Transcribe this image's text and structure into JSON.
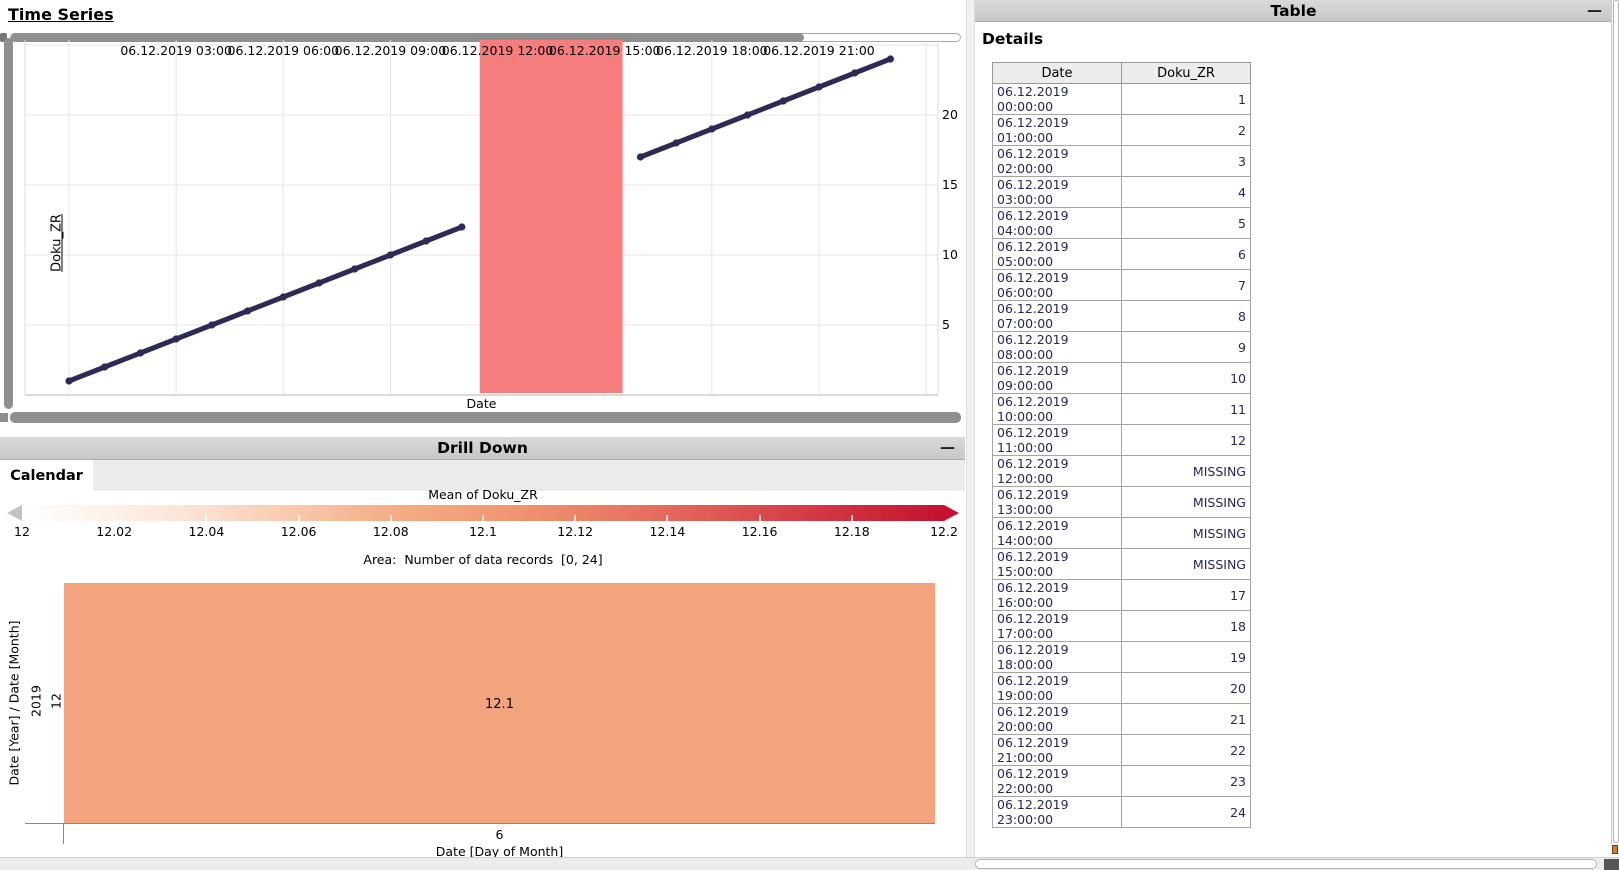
{
  "colors": {
    "navy_text": "#26265e",
    "line": "#2b2b57",
    "missing_band": "#f57d7d",
    "cell_salmon": "#f2a47e",
    "scale_max_red": "#c41230",
    "grid": "#e4e4e4"
  },
  "time_series_panel": {
    "title": "Time Series",
    "x_axis_label": "Date",
    "y_axis_label": "Doku_ZR"
  },
  "drill_down_panel": {
    "title": "Drill Down",
    "minimize_label": "—",
    "tabs": [
      {
        "label": "Calendar",
        "active": true
      }
    ],
    "legend": {
      "title": "Mean of Doku_ZR",
      "tick_labels": [
        "12",
        "12.02",
        "12.04",
        "12.06",
        "12.08",
        "12.1",
        "12.12",
        "12.14",
        "12.16",
        "12.18",
        "12.2"
      ]
    },
    "area_label": "Area:  Number of data records  [0, 24]",
    "heatmap": {
      "y_axis_group_label": "Date [Year] / Date [Month]",
      "year_label": "2019",
      "month_label": "12",
      "cell_value": "12.1",
      "x_tick_label": "6",
      "x_axis_label": "Date [Day of Month]"
    }
  },
  "table_panel": {
    "title": "Table",
    "minimize_label": "—",
    "subtitle": "Details",
    "columns": [
      "Date",
      "Doku_ZR"
    ],
    "rows": [
      [
        "06.12.2019 00:00:00",
        "1"
      ],
      [
        "06.12.2019 01:00:00",
        "2"
      ],
      [
        "06.12.2019 02:00:00",
        "3"
      ],
      [
        "06.12.2019 03:00:00",
        "4"
      ],
      [
        "06.12.2019 04:00:00",
        "5"
      ],
      [
        "06.12.2019 05:00:00",
        "6"
      ],
      [
        "06.12.2019 06:00:00",
        "7"
      ],
      [
        "06.12.2019 07:00:00",
        "8"
      ],
      [
        "06.12.2019 08:00:00",
        "9"
      ],
      [
        "06.12.2019 09:00:00",
        "10"
      ],
      [
        "06.12.2019 10:00:00",
        "11"
      ],
      [
        "06.12.2019 11:00:00",
        "12"
      ],
      [
        "06.12.2019 12:00:00",
        "MISSING"
      ],
      [
        "06.12.2019 13:00:00",
        "MISSING"
      ],
      [
        "06.12.2019 14:00:00",
        "MISSING"
      ],
      [
        "06.12.2019 15:00:00",
        "MISSING"
      ],
      [
        "06.12.2019 16:00:00",
        "17"
      ],
      [
        "06.12.2019 17:00:00",
        "18"
      ],
      [
        "06.12.2019 18:00:00",
        "19"
      ],
      [
        "06.12.2019 19:00:00",
        "20"
      ],
      [
        "06.12.2019 20:00:00",
        "21"
      ],
      [
        "06.12.2019 21:00:00",
        "22"
      ],
      [
        "06.12.2019 22:00:00",
        "23"
      ],
      [
        "06.12.2019 23:00:00",
        "24"
      ]
    ]
  },
  "chart_data": [
    {
      "type": "line",
      "title": "Time Series",
      "xlabel": "Date",
      "ylabel": "Doku_ZR",
      "x_tick_labels": [
        "06.12.2019 03:00",
        "06.12.2019 06:00",
        "06.12.2019 09:00",
        "06.12.2019 12:00",
        "06.12.2019 15:00",
        "06.12.2019 18:00",
        "06.12.2019 21:00"
      ],
      "x_tick_hours": [
        3,
        6,
        9,
        12,
        15,
        18,
        21
      ],
      "x_grid_hours": [
        0,
        3,
        6,
        9,
        12,
        15,
        18,
        21,
        24
      ],
      "y_ticks": [
        5,
        10,
        15,
        20
      ],
      "y_grid": [
        5,
        10,
        15,
        20,
        25
      ],
      "ylim": [
        0,
        25.4
      ],
      "xlim_hours": [
        -1.25,
        24.35
      ],
      "grid": true,
      "legend_position": "none",
      "missing_band": {
        "from_hour": 11.5,
        "to_hour": 15.5
      },
      "series": [
        {
          "name": "Doku_ZR",
          "points": [
            [
              0,
              1
            ],
            [
              1,
              2
            ],
            [
              2,
              3
            ],
            [
              3,
              4
            ],
            [
              4,
              5
            ],
            [
              5,
              6
            ],
            [
              6,
              7
            ],
            [
              7,
              8
            ],
            [
              8,
              9
            ],
            [
              9,
              10
            ],
            [
              10,
              11
            ],
            [
              11,
              12
            ]
          ]
        },
        {
          "name": "Doku_ZR",
          "points": [
            [
              16,
              17
            ],
            [
              17,
              18
            ],
            [
              18,
              19
            ],
            [
              19,
              20
            ],
            [
              20,
              21
            ],
            [
              21,
              22
            ],
            [
              22,
              23
            ],
            [
              23,
              24
            ]
          ]
        }
      ]
    },
    {
      "type": "heatmap",
      "title": "Calendar",
      "legend_title": "Mean of Doku_ZR",
      "legend_range": [
        12,
        12.2
      ],
      "area_encoding": "Number of data records [0, 24]",
      "area_range": [
        0,
        24
      ],
      "ylabel": "Date [Year] / Date [Month]",
      "xlabel": "Date [Day of Month]",
      "row_labels": [
        "2019 / 12"
      ],
      "x_categories": [
        "6"
      ],
      "values": [
        [
          12.1
        ]
      ]
    }
  ]
}
